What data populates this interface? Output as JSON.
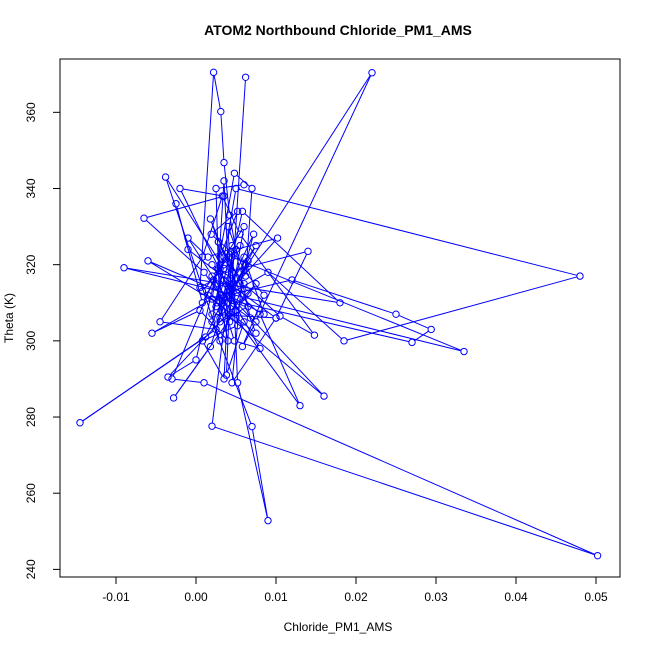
{
  "chart_data": {
    "type": "line",
    "title": "ATOM2 Northbound Chloride_PM1_AMS",
    "xlabel": "Chloride_PM1_AMS",
    "ylabel": "Theta (K)",
    "xlim": [
      -0.017,
      0.053
    ],
    "ylim": [
      238,
      374
    ],
    "x_ticks": [
      -0.01,
      0.0,
      0.01,
      0.02,
      0.03,
      0.04,
      0.05
    ],
    "x_tick_labels": [
      "-0.01",
      "0.00",
      "0.01",
      "0.02",
      "0.03",
      "0.04",
      "0.05"
    ],
    "y_ticks": [
      240,
      260,
      280,
      300,
      320,
      340,
      360
    ],
    "y_tick_labels": [
      "240",
      "260",
      "280",
      "300",
      "320",
      "340",
      "360"
    ],
    "series": [
      {
        "name": "",
        "color": "#0000ff",
        "marker": "open-circle",
        "points": [
          [
            0.0062,
            369.2
          ],
          [
            0.0042,
            305.0
          ],
          [
            0.0022,
            316.0
          ],
          [
            0.0005,
            314.0
          ],
          [
            0.0022,
            370.5
          ],
          [
            0.0031,
            360.2
          ],
          [
            0.0035,
            346.8
          ],
          [
            0.0042,
            333.0
          ],
          [
            0.0055,
            318.0
          ],
          [
            0.0068,
            306.0
          ],
          [
            0.0039,
            310.0
          ],
          [
            0.0015,
            312.0
          ],
          [
            0.027,
            299.6
          ],
          [
            0.0294,
            303.0
          ],
          [
            0.025,
            307.0
          ],
          [
            0.012,
            316.0
          ],
          [
            0.004,
            312.0
          ],
          [
            0.022,
            370.4
          ],
          [
            0.0075,
            305.0
          ],
          [
            0.0058,
            298.5
          ],
          [
            0.0085,
            312.0
          ],
          [
            0.006,
            318.5
          ],
          [
            0.0072,
            328.0
          ],
          [
            0.0012,
            301.0
          ],
          [
            -0.0145,
            278.5
          ],
          [
            0.0025,
            303.0
          ],
          [
            0.0058,
            334.0
          ],
          [
            0.018,
            310.0
          ],
          [
            -0.009,
            319.2
          ],
          [
            0.0335,
            297.2
          ],
          [
            0.0045,
            322.0
          ],
          [
            0.0052,
            289.0
          ],
          [
            0.009,
            252.8
          ],
          [
            0.007,
            277.5
          ],
          [
            0.002,
            305.0
          ],
          [
            0.0035,
            322.0
          ],
          [
            0.005,
            340.0
          ],
          [
            0.048,
            317.0
          ],
          [
            0.0185,
            300.0
          ],
          [
            0.009,
            318.0
          ],
          [
            0.004,
            312.0
          ],
          [
            0.002,
            277.6
          ],
          [
            0.0502,
            243.6
          ],
          [
            0.001,
            289.0
          ],
          [
            -0.003,
            290.0
          ],
          [
            0.003,
            320.0
          ],
          [
            0.006,
            330.0
          ],
          [
            0.0045,
            312.0
          ],
          [
            -0.002,
            340.0
          ],
          [
            0.0035,
            338.0
          ],
          [
            -0.0065,
            332.2
          ],
          [
            0.001,
            318.0
          ],
          [
            0.005,
            306.0
          ],
          [
            0.013,
            283.0
          ],
          [
            0.008,
            307.0
          ],
          [
            0.0035,
            316.0
          ],
          [
            0.01,
            306.0
          ],
          [
            0.014,
            323.5
          ],
          [
            0.002,
            317.0
          ],
          [
            0.0055,
            325.0
          ],
          [
            0.0015,
            322.0
          ],
          [
            -0.001,
            327.0
          ],
          [
            0.0045,
            309.0
          ],
          [
            0.004,
            330.0
          ],
          [
            0.0062,
            317.0
          ],
          [
            0.007,
            340.0
          ],
          [
            0.0048,
            344.0
          ],
          [
            0.002,
            311.0
          ],
          [
            -0.0055,
            302.0
          ],
          [
            0.0005,
            308.0
          ],
          [
            0.004,
            300.0
          ],
          [
            0.0025,
            315.0
          ],
          [
            0.0065,
            312.5
          ],
          [
            0.0028,
            326.0
          ],
          [
            0.0018,
            332.0
          ],
          [
            0.006,
            310.0
          ],
          [
            0.0075,
            302.0
          ],
          [
            0.0008,
            313.0
          ],
          [
            0.0035,
            320.0
          ],
          [
            0.0025,
            309.0
          ],
          [
            0.0102,
            327.0
          ],
          [
            0.005,
            324.0
          ],
          [
            0.003,
            306.0
          ],
          [
            0.0018,
            298.5
          ],
          [
            -0.0028,
            285.0
          ],
          [
            0.005,
            308.0
          ],
          [
            0.0075,
            315.0
          ],
          [
            -0.0035,
            290.5
          ],
          [
            0.0,
            295.0
          ],
          [
            0.003,
            322.0
          ],
          [
            0.0052,
            334.0
          ],
          [
            0.0019,
            328.0
          ],
          [
            0.0062,
            320.0
          ],
          [
            0.0042,
            312.0
          ],
          [
            0.0035,
            342.0
          ],
          [
            0.0028,
            319.0
          ],
          [
            0.006,
            305.0
          ],
          [
            0.0038,
            291.0
          ],
          [
            0.0045,
            325.0
          ],
          [
            0.0008,
            310.0
          ],
          [
            -0.0025,
            336.0
          ],
          [
            -0.001,
            324.0
          ],
          [
            0.0045,
            315.0
          ],
          [
            0.0025,
            303.0
          ],
          [
            -0.0045,
            305.0
          ],
          [
            0.0008,
            322.0
          ],
          [
            0.0033,
            338.0
          ],
          [
            0.0055,
            328.0
          ],
          [
            0.0148,
            301.5
          ],
          [
            0.0105,
            306.5
          ],
          [
            0.006,
            315.0
          ],
          [
            0.003,
            300.0
          ],
          [
            -0.0038,
            343.0
          ],
          [
            0.0035,
            319.0
          ],
          [
            0.002,
            307.0
          ],
          [
            0.01,
            306.0
          ],
          [
            0.0045,
            289.0
          ],
          [
            0.006,
            322.0
          ],
          [
            0.0085,
            307.0
          ],
          [
            0.004,
            312.0
          ],
          [
            -0.006,
            321.0
          ],
          [
            0.0026,
            310.0
          ],
          [
            0.0075,
            325.0
          ],
          [
            0.0042,
            312.0
          ],
          [
            0.016,
            285.5
          ],
          [
            0.0032,
            308.0
          ],
          [
            0.0028,
            326.0
          ],
          [
            0.0045,
            318.0
          ],
          [
            0.0052,
            304.0
          ],
          [
            0.0008,
            300.0
          ],
          [
            0.0035,
            290.0
          ],
          [
            0.004,
            310.0
          ],
          [
            0.0065,
            321.0
          ],
          [
            0.0055,
            315.0
          ],
          [
            0.002,
            320.0
          ],
          [
            0.008,
            298.0
          ],
          [
            0.0048,
            300.0
          ],
          [
            0.003,
            312.0
          ],
          [
            0.0042,
            322.0
          ],
          [
            0.0065,
            309.0
          ],
          [
            0.003,
            305.0
          ],
          [
            0.0025,
            340.0
          ],
          [
            0.006,
            341.0
          ]
        ]
      }
    ],
    "grid": false,
    "legend": "none"
  }
}
